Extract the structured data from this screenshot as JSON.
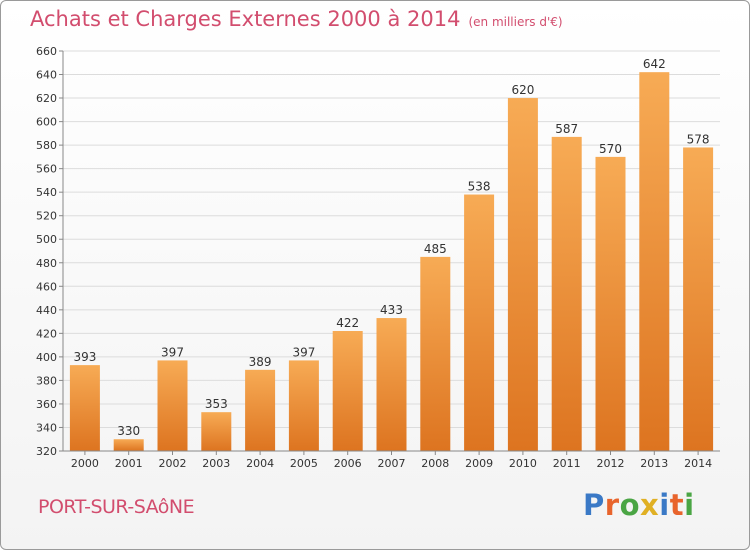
{
  "header": {
    "title": "Achats et Charges Externes 2000 à 2014",
    "subtitle": "(en milliers d'€)"
  },
  "footer": {
    "city": "PORT-SUR-SAôNE",
    "brand": "Proxiti"
  },
  "colors": {
    "title": "#d24d6e",
    "bar_light": "#f5a651",
    "bar_dark": "#e27722",
    "grid": "#dcdcdc"
  },
  "chart_data": {
    "type": "bar",
    "title": "Achats et Charges Externes 2000 à 2014",
    "subtitle": "(en milliers d'€)",
    "xlabel": "",
    "ylabel": "",
    "categories": [
      "2000",
      "2001",
      "2002",
      "2003",
      "2004",
      "2005",
      "2006",
      "2007",
      "2008",
      "2009",
      "2010",
      "2011",
      "2012",
      "2013",
      "2014"
    ],
    "values": [
      393,
      330,
      397,
      353,
      389,
      397,
      422,
      433,
      485,
      538,
      620,
      587,
      570,
      642,
      578
    ],
    "ylim": [
      320,
      660
    ],
    "yticks": [
      320,
      340,
      360,
      380,
      400,
      420,
      440,
      460,
      480,
      500,
      520,
      540,
      560,
      580,
      600,
      620,
      640,
      660
    ],
    "grid": true,
    "legend": "none"
  }
}
